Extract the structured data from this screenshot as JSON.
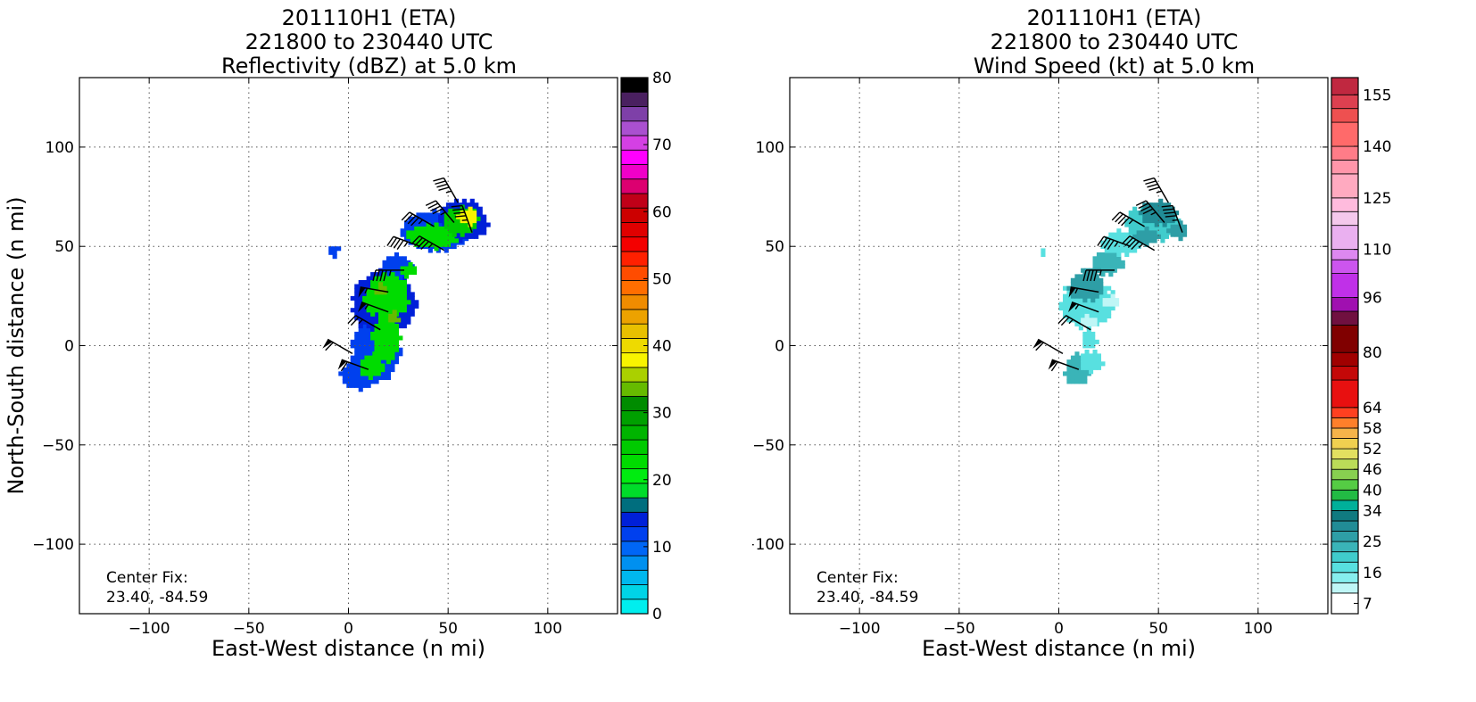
{
  "chart_data": [
    {
      "type": "heatmap",
      "title_lines": [
        "201110H1 (ETA)",
        "221800 to 230440 UTC",
        "Reflectivity (dBZ) at 5.0 km"
      ],
      "xlabel": "East-West distance (n mi)",
      "ylabel": "North-South distance (n mi)",
      "xlim": [
        -135,
        135
      ],
      "ylim": [
        -135,
        135
      ],
      "xticks": [
        -100,
        -50,
        0,
        50,
        100
      ],
      "yticks": [
        -100,
        -50,
        0,
        50,
        100
      ],
      "grid": true,
      "annotation_lines": [
        "Center Fix:",
        "23.40, -84.59"
      ],
      "colorbar": {
        "label": "Reflectivity (dBZ)",
        "min": 0,
        "max": 80,
        "tick_values": [
          0,
          10,
          20,
          30,
          40,
          50,
          60,
          70,
          80
        ],
        "tick_labels": [
          "0",
          "10",
          "20",
          "30",
          "40",
          "50",
          "60",
          "70",
          "80"
        ],
        "colors": [
          "#00eeee",
          "#00d4e6",
          "#00b8ee",
          "#0090f0",
          "#0066f6",
          "#0040ee",
          "#0020d8",
          "#006e7e",
          "#00dc2a",
          "#00ec10",
          "#00dc00",
          "#00ca00",
          "#00b400",
          "#00a000",
          "#008c00",
          "#66bb00",
          "#aad000",
          "#f8f400",
          "#eeda00",
          "#e8c000",
          "#eca200",
          "#f08c00",
          "#ff6e00",
          "#ff4c00",
          "#ff2000",
          "#f40000",
          "#e00000",
          "#cc0000",
          "#c00018",
          "#dc0070",
          "#f000c8",
          "#ff00ff",
          "#d440e4",
          "#aa50d0",
          "#7e40a8",
          "#4a2060",
          "#000000"
        ]
      },
      "blobs": [
        {
          "x": 5,
          "y": -15,
          "rx": 9,
          "ry": 7,
          "value": 12
        },
        {
          "x": 14,
          "y": -2,
          "rx": 12,
          "ry": 16,
          "value": 12
        },
        {
          "x": 18,
          "y": 22,
          "rx": 16,
          "ry": 16,
          "value": 14
        },
        {
          "x": 24,
          "y": 40,
          "rx": 8,
          "ry": 6,
          "value": 12
        },
        {
          "x": 44,
          "y": 58,
          "rx": 17,
          "ry": 10,
          "value": 12
        },
        {
          "x": 58,
          "y": 63,
          "rx": 12,
          "ry": 10,
          "value": 14
        },
        {
          "x": -8,
          "y": 48,
          "rx": 3,
          "ry": 3,
          "value": 12
        },
        {
          "x": 11,
          "y": -10,
          "rx": 6,
          "ry": 6,
          "value": 22
        },
        {
          "x": 19,
          "y": 4,
          "rx": 7,
          "ry": 12,
          "value": 22
        },
        {
          "x": 19,
          "y": 25,
          "rx": 11,
          "ry": 11,
          "value": 22
        },
        {
          "x": 42,
          "y": 55,
          "rx": 12,
          "ry": 6,
          "value": 22
        },
        {
          "x": 56,
          "y": 63,
          "rx": 9,
          "ry": 7,
          "value": 24
        },
        {
          "x": 30,
          "y": 38,
          "rx": 5,
          "ry": 3,
          "value": 22
        },
        {
          "x": 60,
          "y": 65,
          "rx": 5,
          "ry": 4,
          "value": 38
        },
        {
          "x": 22,
          "y": 14,
          "rx": 3,
          "ry": 3,
          "value": 34
        },
        {
          "x": 17,
          "y": 28,
          "rx": 3,
          "ry": 3,
          "value": 34
        }
      ],
      "wind_barbs": [
        {
          "x": 2,
          "y": -4,
          "dir": 300,
          "speed": 60
        },
        {
          "x": 10,
          "y": -12,
          "dir": 290,
          "speed": 60
        },
        {
          "x": 16,
          "y": 8,
          "dir": 300,
          "speed": 25
        },
        {
          "x": 20,
          "y": 17,
          "dir": 290,
          "speed": 55
        },
        {
          "x": 20,
          "y": 27,
          "dir": 280,
          "speed": 55
        },
        {
          "x": 28,
          "y": 38,
          "dir": 270,
          "speed": 45
        },
        {
          "x": 36,
          "y": 50,
          "dir": 290,
          "speed": 45
        },
        {
          "x": 43,
          "y": 60,
          "dir": 300,
          "speed": 45
        },
        {
          "x": 48,
          "y": 48,
          "dir": 300,
          "speed": 45
        },
        {
          "x": 53,
          "y": 62,
          "dir": 320,
          "speed": 45
        },
        {
          "x": 55,
          "y": 72,
          "dir": 330,
          "speed": 45
        },
        {
          "x": 62,
          "y": 57,
          "dir": 340,
          "speed": 45
        }
      ]
    },
    {
      "type": "heatmap",
      "title_lines": [
        "201110H1 (ETA)",
        "221800 to 230440 UTC",
        "Wind Speed (kt) at 5.0 km"
      ],
      "xlabel": "East-West distance (n mi)",
      "ylabel": "North-South distance (n mi)",
      "xlim": [
        -135,
        135
      ],
      "ylim": [
        -135,
        135
      ],
      "xticks": [
        -100,
        -50,
        0,
        50,
        100
      ],
      "yticks": [
        -100,
        -50,
        0,
        50,
        100
      ],
      "grid": true,
      "annotation_lines": [
        "Center Fix:",
        "23.40, -84.59"
      ],
      "colorbar": {
        "label": "Wind Speed (kt)",
        "min": 4,
        "max": 160,
        "tick_values": [
          7,
          16,
          25,
          34,
          40,
          46,
          52,
          58,
          64,
          80,
          96,
          110,
          125,
          140,
          155
        ],
        "tick_labels": [
          "7",
          "16",
          "25",
          "34",
          "40",
          "46",
          "52",
          "58",
          "64",
          "80",
          "96",
          "110",
          "125",
          "140",
          "155"
        ],
        "boundaries": [
          4,
          10,
          13,
          16,
          19,
          22,
          25,
          28,
          31,
          34,
          37,
          40,
          43,
          46,
          49,
          52,
          55,
          58,
          61,
          64,
          72,
          76,
          80,
          88,
          92,
          96,
          103,
          107,
          110,
          117,
          121,
          125,
          132,
          136,
          140,
          147,
          151,
          155,
          160
        ],
        "colors": [
          "#ffffff",
          "#bff6f6",
          "#86eeee",
          "#58e0e0",
          "#40cccc",
          "#3ab4b8",
          "#2e9ea6",
          "#218c96",
          "#107a80",
          "#00b09a",
          "#22bb44",
          "#55cc44",
          "#88d050",
          "#bbdc58",
          "#e2e060",
          "#f0d050",
          "#f6b44a",
          "#ff7f2a",
          "#ff4020",
          "#e81010",
          "#c40808",
          "#a00000",
          "#800000",
          "#701040",
          "#a010b0",
          "#c030e8",
          "#cc55ee",
          "#dd88f0",
          "#eab0f0",
          "#f4c8ec",
          "#ffbbdd",
          "#ffaac0",
          "#ff96aa",
          "#ff7c88",
          "#ff6a6a",
          "#ee5050",
          "#dd4050",
          "#c02840",
          "#9c1438"
        ]
      },
      "blobs": [
        {
          "x": 9,
          "y": -12,
          "rx": 6,
          "ry": 8,
          "value": 24
        },
        {
          "x": 16,
          "y": -8,
          "rx": 6,
          "ry": 5,
          "value": 18
        },
        {
          "x": 15,
          "y": 3,
          "rx": 4,
          "ry": 5,
          "value": 18
        },
        {
          "x": 14,
          "y": 22,
          "rx": 13,
          "ry": 13,
          "value": 18
        },
        {
          "x": 14,
          "y": 30,
          "rx": 9,
          "ry": 7,
          "value": 26
        },
        {
          "x": 24,
          "y": 42,
          "rx": 8,
          "ry": 6,
          "value": 22
        },
        {
          "x": 32,
          "y": 52,
          "rx": 10,
          "ry": 6,
          "value": 18
        },
        {
          "x": 47,
          "y": 62,
          "rx": 13,
          "ry": 9,
          "value": 20
        },
        {
          "x": 50,
          "y": 67,
          "rx": 9,
          "ry": 6,
          "value": 29
        },
        {
          "x": 44,
          "y": 55,
          "rx": 6,
          "ry": 4,
          "value": 27
        },
        {
          "x": 60,
          "y": 58,
          "rx": 5,
          "ry": 4,
          "value": 26
        },
        {
          "x": 16,
          "y": 37,
          "rx": 4,
          "ry": 3,
          "value": 27
        },
        {
          "x": -8,
          "y": 48,
          "rx": 2,
          "ry": 2,
          "value": 18
        },
        {
          "x": 26,
          "y": 22,
          "rx": 5,
          "ry": 3,
          "value": 12
        },
        {
          "x": 15,
          "y": 12,
          "rx": 5,
          "ry": 3,
          "value": 12
        }
      ],
      "wind_barbs": [
        {
          "x": 2,
          "y": -4,
          "dir": 300,
          "speed": 60
        },
        {
          "x": 10,
          "y": -12,
          "dir": 290,
          "speed": 60
        },
        {
          "x": 16,
          "y": 8,
          "dir": 300,
          "speed": 25
        },
        {
          "x": 20,
          "y": 17,
          "dir": 290,
          "speed": 55
        },
        {
          "x": 20,
          "y": 27,
          "dir": 280,
          "speed": 55
        },
        {
          "x": 28,
          "y": 38,
          "dir": 270,
          "speed": 45
        },
        {
          "x": 36,
          "y": 50,
          "dir": 290,
          "speed": 45
        },
        {
          "x": 43,
          "y": 60,
          "dir": 300,
          "speed": 45
        },
        {
          "x": 48,
          "y": 48,
          "dir": 300,
          "speed": 45
        },
        {
          "x": 53,
          "y": 62,
          "dir": 320,
          "speed": 45
        },
        {
          "x": 55,
          "y": 72,
          "dir": 330,
          "speed": 45
        },
        {
          "x": 62,
          "y": 57,
          "dir": 340,
          "speed": 45
        }
      ]
    }
  ]
}
